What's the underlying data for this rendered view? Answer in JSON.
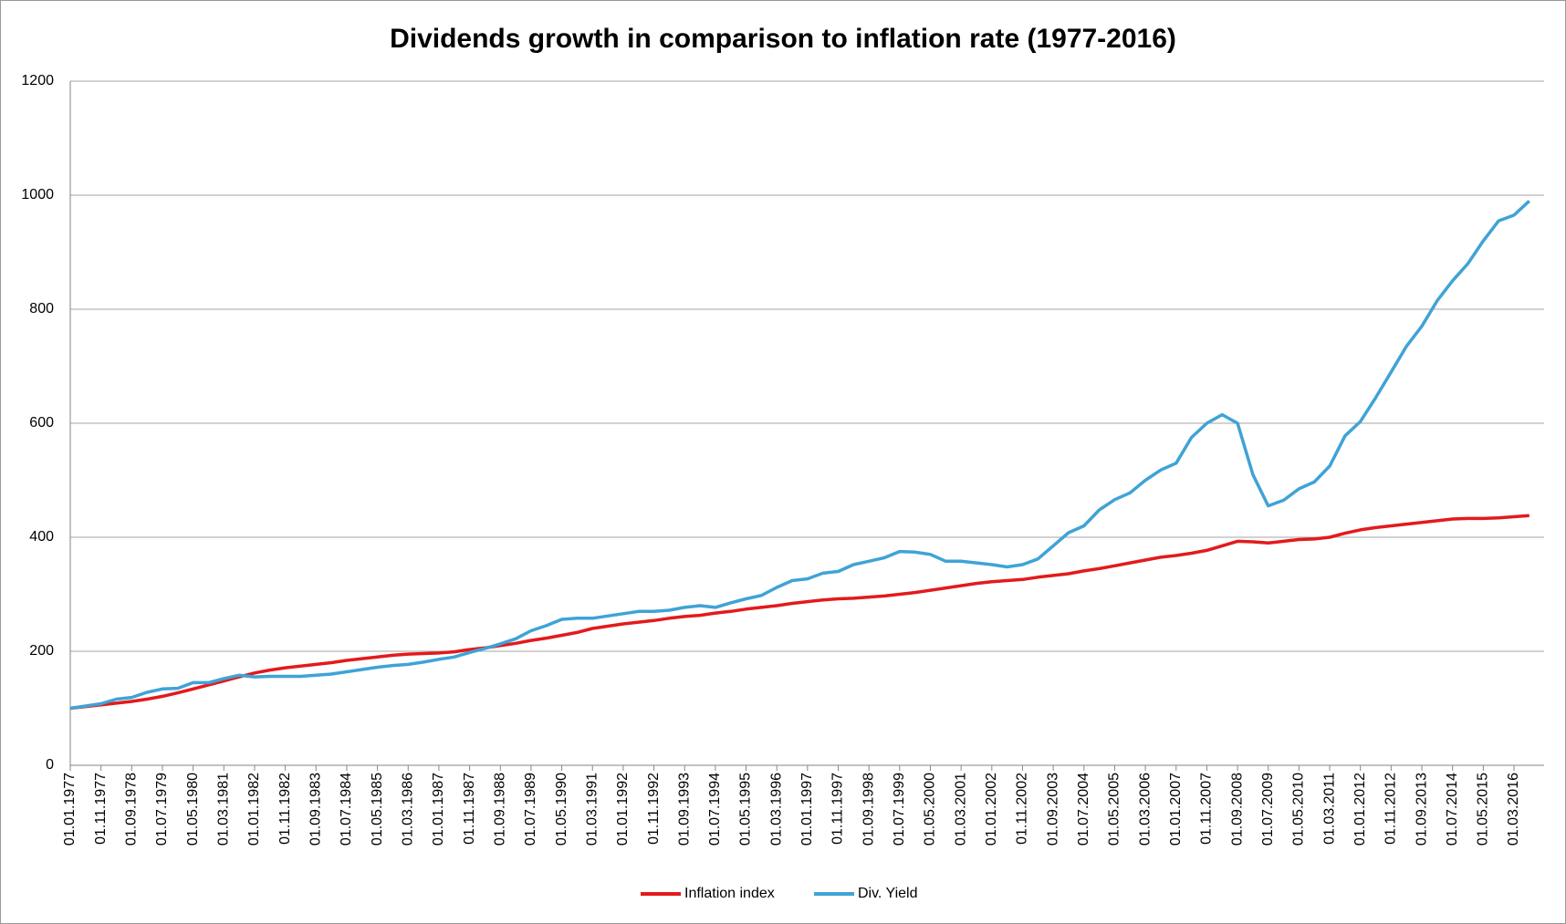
{
  "chart_data": {
    "type": "line",
    "title": "Dividends growth in comparison to inflation rate (1977-2016)",
    "categories": [
      "01.01.1977",
      null,
      "01.11.1977",
      null,
      "01.09.1978",
      null,
      "01.07.1979",
      null,
      "01.05.1980",
      null,
      "01.03.1981",
      null,
      "01.01.1982",
      null,
      "01.11.1982",
      null,
      "01.09.1983",
      null,
      "01.07.1984",
      null,
      "01.05.1985",
      null,
      "01.03.1986",
      null,
      "01.01.1987",
      null,
      "01.11.1987",
      null,
      "01.09.1988",
      null,
      "01.07.1989",
      null,
      "01.05.1990",
      null,
      "01.03.1991",
      null,
      "01.01.1992",
      null,
      "01.11.1992",
      null,
      "01.09.1993",
      null,
      "01.07.1994",
      null,
      "01.05.1995",
      null,
      "01.03.1996",
      null,
      "01.01.1997",
      null,
      "01.11.1997",
      null,
      "01.09.1998",
      null,
      "01.07.1999",
      null,
      "01.05.2000",
      null,
      "01.03.2001",
      null,
      "01.01.2002",
      null,
      "01.11.2002",
      null,
      "01.09.2003",
      null,
      "01.07.2004",
      null,
      "01.05.2005",
      null,
      "01.03.2006",
      null,
      "01.01.2007",
      null,
      "01.11.2007",
      null,
      "01.09.2008",
      null,
      "01.07.2009",
      null,
      "01.05.2010",
      null,
      "01.03.2011",
      null,
      "01.01.2012",
      null,
      "01.11.2012",
      null,
      "01.09.2013",
      null,
      "01.07.2014",
      null,
      "01.05.2015",
      null,
      "01.03.2016",
      null
    ],
    "series": [
      {
        "name": "Inflation index",
        "color": "#e31a1c",
        "values": [
          100,
          103,
          106,
          109,
          112,
          116,
          121,
          127,
          134,
          141,
          148,
          155,
          162,
          167,
          171,
          174,
          177,
          180,
          184,
          187,
          190,
          193,
          195,
          196,
          197,
          199,
          203,
          206,
          210,
          214,
          219,
          223,
          228,
          233,
          240,
          244,
          248,
          251,
          254,
          258,
          261,
          263,
          267,
          270,
          274,
          277,
          280,
          284,
          287,
          290,
          292,
          293,
          295,
          297,
          300,
          303,
          307,
          311,
          315,
          319,
          322,
          324,
          326,
          330,
          333,
          336,
          341,
          345,
          350,
          355,
          360,
          365,
          368,
          372,
          377,
          385,
          393,
          392,
          390,
          393,
          396,
          397,
          400,
          407,
          413,
          417,
          420,
          423,
          426,
          429,
          432,
          433,
          433,
          434,
          436,
          438
        ]
      },
      {
        "name": "Div. Yield",
        "color": "#3fa3d6",
        "values": [
          100,
          104,
          108,
          116,
          119,
          128,
          134,
          135,
          145,
          145,
          152,
          158,
          155,
          156,
          156,
          156,
          158,
          160,
          164,
          168,
          172,
          175,
          177,
          181,
          186,
          190,
          198,
          205,
          213,
          222,
          236,
          245,
          256,
          258,
          258,
          262,
          266,
          270,
          270,
          272,
          277,
          280,
          277,
          285,
          292,
          298,
          312,
          324,
          327,
          337,
          340,
          352,
          358,
          364,
          375,
          374,
          370,
          358,
          358,
          355,
          352,
          348,
          352,
          362,
          385,
          408,
          420,
          448,
          466,
          478,
          500,
          518,
          530,
          575,
          600,
          615,
          600,
          510,
          455,
          465,
          485,
          497,
          525,
          578,
          603,
          645,
          690,
          735,
          770,
          815,
          850,
          880,
          920,
          955,
          965,
          990
        ]
      }
    ],
    "ylim": [
      0,
      1200
    ],
    "yticks": [
      0,
      200,
      400,
      600,
      800,
      1000,
      1200
    ],
    "grid": true,
    "legend": "bottom"
  }
}
